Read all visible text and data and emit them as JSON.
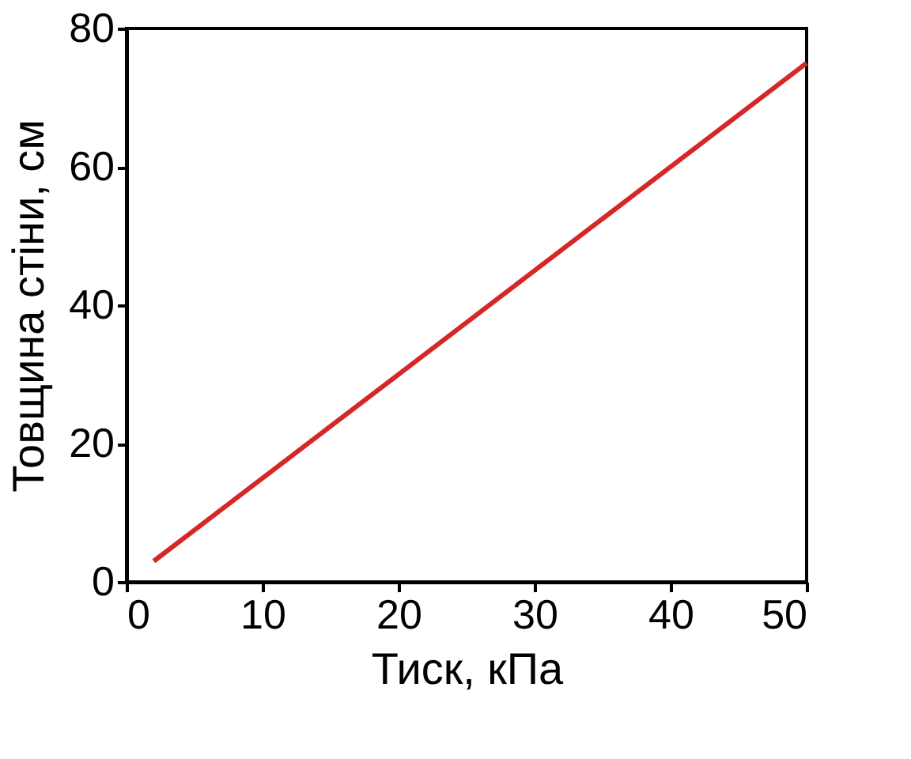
{
  "chart_data": {
    "type": "line",
    "xlabel": "Тиск, кПа",
    "ylabel": "Товщина стіни, см",
    "x": [
      2,
      50
    ],
    "series": [
      {
        "color": "#d62728",
        "values": [
          3,
          75
        ]
      }
    ],
    "xlim": [
      0,
      50
    ],
    "xticks": [
      0,
      10,
      20,
      30,
      40,
      50
    ],
    "ylim": [
      0,
      80
    ],
    "yticks": [
      0,
      20,
      40,
      60,
      80
    ],
    "grid": false,
    "legend": false,
    "line_style": "solid"
  }
}
